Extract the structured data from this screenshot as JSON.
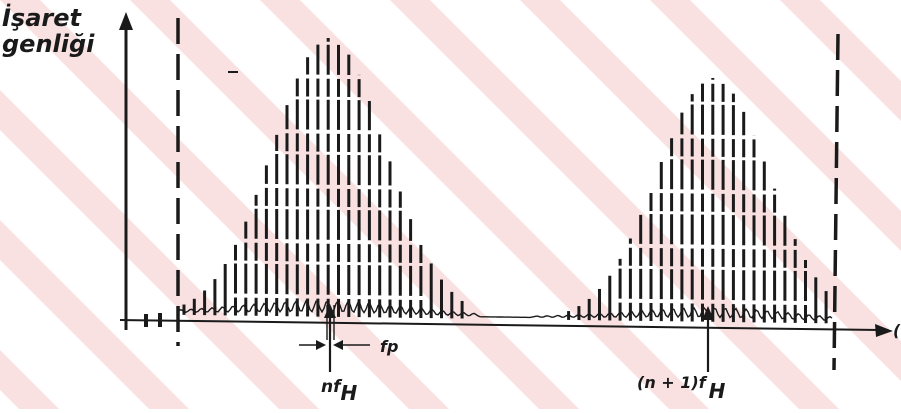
{
  "labels": {
    "y_axis_line1": "İşaret",
    "y_axis_line2": "genliği",
    "fp": "fp",
    "nfh_prefix": "nf",
    "nfh_sub": "H",
    "n1fh_prefix": "(n + 1)f",
    "n1fh_sub": "H",
    "x_axis_end": "("
  },
  "colors": {
    "ink": "#1a1a1a",
    "watermark": "#f7c9c9",
    "background": "#ffffff"
  }
}
